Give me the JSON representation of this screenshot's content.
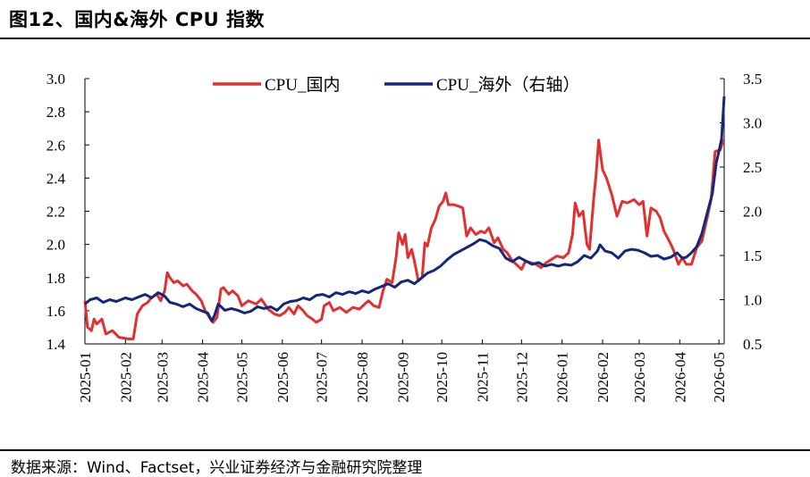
{
  "figure": {
    "title": "图12、国内&海外 CPU 指数",
    "source": "数据来源：Wind、Factset，兴业证券经济与金融研究院整理"
  },
  "colors": {
    "domestic": "#e03030",
    "overseas": "#14287a"
  },
  "chart_data": {
    "type": "line",
    "title": "",
    "x_tick_labels": [
      "2025-01",
      "2025-02",
      "2025-03",
      "2025-04",
      "2025-05",
      "2025-06",
      "2025-07",
      "2025-08",
      "2025-09",
      "2025-10",
      "2025-11",
      "2025-12",
      "2026-01",
      "2026-02",
      "2026-03",
      "2026-04",
      "2026-05"
    ],
    "ylim_left": [
      1.4,
      3.0
    ],
    "yticks_left": [
      "1.4",
      "1.6",
      "1.8",
      "2.0",
      "2.2",
      "2.4",
      "2.6",
      "2.8",
      "3.0"
    ],
    "ylim_right": [
      0.5,
      3.5
    ],
    "yticks_right": [
      "0.5",
      "1.0",
      "1.5",
      "2.0",
      "2.5",
      "3.0",
      "3.5"
    ],
    "grid": false,
    "legend_position": "top",
    "series": [
      {
        "name": "CPU_国内",
        "axis": "left",
        "points": [
          [
            "2025-01-01",
            1.66
          ],
          [
            "2025-01-03",
            1.5
          ],
          [
            "2025-01-06",
            1.48
          ],
          [
            "2025-01-08",
            1.55
          ],
          [
            "2025-01-10",
            1.52
          ],
          [
            "2025-01-14",
            1.55
          ],
          [
            "2025-01-17",
            1.46
          ],
          [
            "2025-01-22",
            1.48
          ],
          [
            "2025-01-27",
            1.44
          ],
          [
            "2025-02-03",
            1.43
          ],
          [
            "2025-02-07",
            1.43
          ],
          [
            "2025-02-10",
            1.58
          ],
          [
            "2025-02-14",
            1.63
          ],
          [
            "2025-02-18",
            1.65
          ],
          [
            "2025-02-21",
            1.68
          ],
          [
            "2025-02-25",
            1.7
          ],
          [
            "2025-02-28",
            1.66
          ],
          [
            "2025-03-03",
            1.72
          ],
          [
            "2025-03-05",
            1.83
          ],
          [
            "2025-03-07",
            1.8
          ],
          [
            "2025-03-10",
            1.77
          ],
          [
            "2025-03-13",
            1.78
          ],
          [
            "2025-03-17",
            1.75
          ],
          [
            "2025-03-20",
            1.76
          ],
          [
            "2025-03-24",
            1.72
          ],
          [
            "2025-03-27",
            1.7
          ],
          [
            "2025-03-31",
            1.66
          ],
          [
            "2025-04-03",
            1.6
          ],
          [
            "2025-04-07",
            1.55
          ],
          [
            "2025-04-09",
            1.53
          ],
          [
            "2025-04-12",
            1.56
          ],
          [
            "2025-04-15",
            1.73
          ],
          [
            "2025-04-17",
            1.74
          ],
          [
            "2025-04-21",
            1.7
          ],
          [
            "2025-04-24",
            1.72
          ],
          [
            "2025-04-28",
            1.69
          ],
          [
            "2025-05-01",
            1.63
          ],
          [
            "2025-05-06",
            1.66
          ],
          [
            "2025-05-12",
            1.64
          ],
          [
            "2025-05-16",
            1.67
          ],
          [
            "2025-05-21",
            1.61
          ],
          [
            "2025-05-26",
            1.58
          ],
          [
            "2025-05-30",
            1.57
          ],
          [
            "2025-06-03",
            1.59
          ],
          [
            "2025-06-06",
            1.62
          ],
          [
            "2025-06-10",
            1.58
          ],
          [
            "2025-06-13",
            1.63
          ],
          [
            "2025-06-17",
            1.6
          ],
          [
            "2025-06-20",
            1.57
          ],
          [
            "2025-06-24",
            1.55
          ],
          [
            "2025-06-27",
            1.53
          ],
          [
            "2025-07-01",
            1.55
          ],
          [
            "2025-07-03",
            1.63
          ],
          [
            "2025-07-07",
            1.65
          ],
          [
            "2025-07-10",
            1.6
          ],
          [
            "2025-07-15",
            1.62
          ],
          [
            "2025-07-20",
            1.59
          ],
          [
            "2025-07-25",
            1.62
          ],
          [
            "2025-07-30",
            1.61
          ],
          [
            "2025-08-03",
            1.64
          ],
          [
            "2025-08-06",
            1.66
          ],
          [
            "2025-08-10",
            1.63
          ],
          [
            "2025-08-14",
            1.62
          ],
          [
            "2025-08-17",
            1.72
          ],
          [
            "2025-08-20",
            1.79
          ],
          [
            "2025-08-24",
            1.77
          ],
          [
            "2025-08-27",
            1.92
          ],
          [
            "2025-08-29",
            2.07
          ],
          [
            "2025-09-01",
            2.0
          ],
          [
            "2025-09-03",
            2.06
          ],
          [
            "2025-09-05",
            1.92
          ],
          [
            "2025-09-08",
            1.97
          ],
          [
            "2025-09-10",
            1.9
          ],
          [
            "2025-09-13",
            1.78
          ],
          [
            "2025-09-16",
            1.8
          ],
          [
            "2025-09-18",
            2.01
          ],
          [
            "2025-09-20",
            1.99
          ],
          [
            "2025-09-23",
            2.1
          ],
          [
            "2025-09-26",
            2.15
          ],
          [
            "2025-09-29",
            2.23
          ],
          [
            "2025-10-02",
            2.26
          ],
          [
            "2025-10-04",
            2.31
          ],
          [
            "2025-10-06",
            2.24
          ],
          [
            "2025-10-10",
            2.24
          ],
          [
            "2025-10-14",
            2.23
          ],
          [
            "2025-10-17",
            2.22
          ],
          [
            "2025-10-20",
            2.05
          ],
          [
            "2025-10-23",
            2.1
          ],
          [
            "2025-10-27",
            2.06
          ],
          [
            "2025-10-31",
            2.08
          ],
          [
            "2025-11-03",
            2.07
          ],
          [
            "2025-11-06",
            2.1
          ],
          [
            "2025-11-10",
            2.01
          ],
          [
            "2025-11-13",
            2.04
          ],
          [
            "2025-11-17",
            1.97
          ],
          [
            "2025-11-20",
            1.95
          ],
          [
            "2025-11-24",
            1.9
          ],
          [
            "2025-11-27",
            1.88
          ],
          [
            "2025-12-01",
            1.85
          ],
          [
            "2025-12-04",
            1.9
          ],
          [
            "2025-12-08",
            1.89
          ],
          [
            "2025-12-12",
            1.88
          ],
          [
            "2025-12-16",
            1.86
          ],
          [
            "2025-12-20",
            1.89
          ],
          [
            "2025-12-24",
            1.91
          ],
          [
            "2025-12-28",
            1.93
          ],
          [
            "2026-01-02",
            1.92
          ],
          [
            "2026-01-06",
            1.95
          ],
          [
            "2026-01-09",
            2.06
          ],
          [
            "2026-01-11",
            2.25
          ],
          [
            "2026-01-14",
            2.17
          ],
          [
            "2026-01-17",
            2.2
          ],
          [
            "2026-01-20",
            2.0
          ],
          [
            "2026-01-22",
            1.97
          ],
          [
            "2026-01-25",
            2.26
          ],
          [
            "2026-01-27",
            2.42
          ],
          [
            "2026-01-29",
            2.63
          ],
          [
            "2026-02-01",
            2.45
          ],
          [
            "2026-02-04",
            2.4
          ],
          [
            "2026-02-08",
            2.3
          ],
          [
            "2026-02-12",
            2.17
          ],
          [
            "2026-02-16",
            2.26
          ],
          [
            "2026-02-20",
            2.25
          ],
          [
            "2026-02-25",
            2.27
          ],
          [
            "2026-03-01",
            2.24
          ],
          [
            "2026-03-04",
            2.26
          ],
          [
            "2026-03-07",
            2.05
          ],
          [
            "2026-03-10",
            2.22
          ],
          [
            "2026-03-14",
            2.2
          ],
          [
            "2026-03-17",
            2.16
          ],
          [
            "2026-03-20",
            2.08
          ],
          [
            "2026-03-24",
            2.02
          ],
          [
            "2026-03-27",
            1.97
          ],
          [
            "2026-03-31",
            1.88
          ],
          [
            "2026-04-03",
            1.92
          ],
          [
            "2026-04-06",
            1.88
          ],
          [
            "2026-04-10",
            1.88
          ],
          [
            "2026-04-14",
            1.98
          ],
          [
            "2026-04-18",
            2.02
          ],
          [
            "2026-04-22",
            2.16
          ],
          [
            "2026-04-25",
            2.27
          ],
          [
            "2026-04-28",
            2.56
          ],
          [
            "2026-05-02",
            2.57
          ],
          [
            "2026-05-04",
            2.62
          ],
          [
            "2026-05-05",
            2.63
          ]
        ]
      },
      {
        "name": "CPU_海外（右轴）",
        "axis": "right",
        "points": [
          [
            "2025-01-01",
            0.95
          ],
          [
            "2025-01-05",
            1.0
          ],
          [
            "2025-01-10",
            1.02
          ],
          [
            "2025-01-15",
            0.97
          ],
          [
            "2025-01-20",
            1.0
          ],
          [
            "2025-01-25",
            0.98
          ],
          [
            "2025-02-01",
            1.02
          ],
          [
            "2025-02-06",
            1.0
          ],
          [
            "2025-02-11",
            1.03
          ],
          [
            "2025-02-16",
            1.06
          ],
          [
            "2025-02-21",
            1.02
          ],
          [
            "2025-02-26",
            1.08
          ],
          [
            "2025-03-03",
            1.04
          ],
          [
            "2025-03-07",
            0.97
          ],
          [
            "2025-03-12",
            0.95
          ],
          [
            "2025-03-17",
            0.92
          ],
          [
            "2025-03-22",
            0.95
          ],
          [
            "2025-03-27",
            0.9
          ],
          [
            "2025-04-01",
            0.87
          ],
          [
            "2025-04-05",
            0.85
          ],
          [
            "2025-04-08",
            0.76
          ],
          [
            "2025-04-10",
            0.82
          ],
          [
            "2025-04-13",
            0.95
          ],
          [
            "2025-04-18",
            0.88
          ],
          [
            "2025-04-23",
            0.9
          ],
          [
            "2025-04-28",
            0.88
          ],
          [
            "2025-05-03",
            0.85
          ],
          [
            "2025-05-08",
            0.87
          ],
          [
            "2025-05-13",
            0.92
          ],
          [
            "2025-05-18",
            0.9
          ],
          [
            "2025-05-23",
            0.92
          ],
          [
            "2025-05-28",
            0.88
          ],
          [
            "2025-06-02",
            0.95
          ],
          [
            "2025-06-07",
            0.98
          ],
          [
            "2025-06-12",
            0.99
          ],
          [
            "2025-06-17",
            1.02
          ],
          [
            "2025-06-22",
            1.0
          ],
          [
            "2025-06-27",
            1.05
          ],
          [
            "2025-07-02",
            1.06
          ],
          [
            "2025-07-07",
            1.03
          ],
          [
            "2025-07-12",
            1.08
          ],
          [
            "2025-07-17",
            1.06
          ],
          [
            "2025-07-22",
            1.09
          ],
          [
            "2025-07-27",
            1.07
          ],
          [
            "2025-08-01",
            1.1
          ],
          [
            "2025-08-06",
            1.08
          ],
          [
            "2025-08-11",
            1.12
          ],
          [
            "2025-08-16",
            1.15
          ],
          [
            "2025-08-21",
            1.18
          ],
          [
            "2025-08-26",
            1.14
          ],
          [
            "2025-08-31",
            1.2
          ],
          [
            "2025-09-05",
            1.22
          ],
          [
            "2025-09-10",
            1.18
          ],
          [
            "2025-09-15",
            1.24
          ],
          [
            "2025-09-20",
            1.3
          ],
          [
            "2025-09-25",
            1.33
          ],
          [
            "2025-09-30",
            1.38
          ],
          [
            "2025-10-05",
            1.45
          ],
          [
            "2025-10-10",
            1.51
          ],
          [
            "2025-10-15",
            1.55
          ],
          [
            "2025-10-20",
            1.59
          ],
          [
            "2025-10-25",
            1.63
          ],
          [
            "2025-10-30",
            1.68
          ],
          [
            "2025-11-04",
            1.66
          ],
          [
            "2025-11-09",
            1.61
          ],
          [
            "2025-11-14",
            1.58
          ],
          [
            "2025-11-19",
            1.47
          ],
          [
            "2025-11-24",
            1.43
          ],
          [
            "2025-11-29",
            1.48
          ],
          [
            "2025-12-04",
            1.44
          ],
          [
            "2025-12-09",
            1.4
          ],
          [
            "2025-12-14",
            1.42
          ],
          [
            "2025-12-19",
            1.38
          ],
          [
            "2025-12-24",
            1.4
          ],
          [
            "2025-12-29",
            1.38
          ],
          [
            "2026-01-03",
            1.4
          ],
          [
            "2026-01-08",
            1.39
          ],
          [
            "2026-01-13",
            1.43
          ],
          [
            "2026-01-18",
            1.5
          ],
          [
            "2026-01-23",
            1.47
          ],
          [
            "2026-01-28",
            1.55
          ],
          [
            "2026-01-30",
            1.62
          ],
          [
            "2026-02-03",
            1.55
          ],
          [
            "2026-02-08",
            1.53
          ],
          [
            "2026-02-13",
            1.47
          ],
          [
            "2026-02-18",
            1.55
          ],
          [
            "2026-02-23",
            1.57
          ],
          [
            "2026-02-28",
            1.56
          ],
          [
            "2026-03-05",
            1.53
          ],
          [
            "2026-03-10",
            1.49
          ],
          [
            "2026-03-15",
            1.5
          ],
          [
            "2026-03-20",
            1.46
          ],
          [
            "2026-03-25",
            1.48
          ],
          [
            "2026-03-30",
            1.53
          ],
          [
            "2026-04-03",
            1.47
          ],
          [
            "2026-04-06",
            1.48
          ],
          [
            "2026-04-10",
            1.53
          ],
          [
            "2026-04-14",
            1.6
          ],
          [
            "2026-04-18",
            1.75
          ],
          [
            "2026-04-22",
            1.98
          ],
          [
            "2026-04-26",
            2.2
          ],
          [
            "2026-04-29",
            2.55
          ],
          [
            "2026-05-01",
            2.68
          ],
          [
            "2026-05-03",
            2.82
          ],
          [
            "2026-05-04",
            3.05
          ],
          [
            "2026-05-05",
            3.3
          ]
        ]
      }
    ]
  }
}
